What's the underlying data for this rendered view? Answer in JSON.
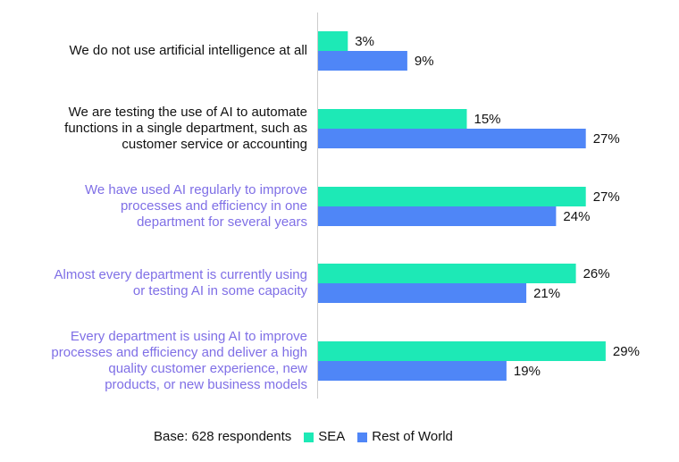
{
  "chart_data": {
    "type": "bar",
    "orientation": "horizontal",
    "categories": [
      "We do not use artificial intelligence at all",
      "We are testing the use of AI to automate functions in a single department, such as customer service or accounting",
      "We have used AI regularly to improve processes and efficiency in one department for several years",
      "Almost every department is currently using or testing AI in some capacity",
      "Every department is using AI to improve processes and efficiency and deliver a high quality customer experience, new products, or new business models"
    ],
    "category_lines": [
      [
        "We do not use artificial intelligence at all"
      ],
      [
        "We are testing the use of AI to automate",
        "functions in a single department, such as",
        "customer service or accounting"
      ],
      [
        "We have used AI regularly to improve",
        "processes and efficiency in one",
        "department for several years"
      ],
      [
        "Almost every department is currently using",
        "or testing AI in some capacity"
      ],
      [
        "Every department is using AI to improve",
        "processes and efficiency and deliver a high",
        "quality customer experience, new",
        "products, or new business models"
      ]
    ],
    "highlighted": [
      false,
      false,
      true,
      true,
      true
    ],
    "series": [
      {
        "name": "SEA",
        "color": "#1de9b6",
        "values": [
          3,
          15,
          27,
          26,
          29
        ],
        "labels": [
          "3%",
          "15%",
          "27%",
          "26%",
          "29%"
        ]
      },
      {
        "name": "Rest of World",
        "color": "#4f86f7",
        "values": [
          9,
          27,
          24,
          21,
          19
        ],
        "labels": [
          "9%",
          "27%",
          "24%",
          "21%",
          "19%"
        ]
      }
    ],
    "xlim": [
      0,
      30
    ],
    "grid": false,
    "legend_position": "bottom",
    "base_note": "Base: 628 respondents"
  }
}
